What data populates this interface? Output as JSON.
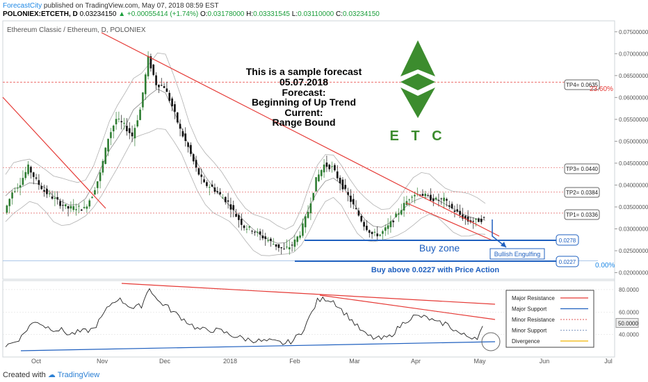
{
  "header": {
    "brand": "ForecastCity",
    "published": "published on TradingView.com, May 07, 2018 08:59 EST",
    "symbol": "POLONIEX:ETCETH, D",
    "last": "0.03234150",
    "change": "▲ +0.00055414 (+1.74%)",
    "o_label": "O:",
    "o_val": "0.03178000",
    "h_label": "H:",
    "h_val": "0.03331545",
    "l_label": "L:",
    "l_val": "0.03110000",
    "c_label": "C:",
    "c_val": "0.03234150"
  },
  "chart_title": "Ethereum Classic / Ethereum, D, POLONIEX",
  "forecast_text": [
    "This is a sample forecast",
    "05.07.2018",
    "Forecast:",
    "Beginning of Up Trend",
    "Current:",
    "Range Bound"
  ],
  "logo_letters": "E T C",
  "annotations": {
    "tp4": "TP4= 0.0635",
    "tp3": "TP3= 0.0440",
    "tp2": "TP2= 0.0384",
    "tp1": "TP1= 0.0336",
    "buy_top": "0.0278",
    "buy_bottom": "0.0227",
    "fib_top": "23.60%",
    "fib_bottom": "0.00%",
    "buy_zone": "Buy zone",
    "bullish": "Bullish Engulfing",
    "buy_above": "Buy above 0.0227 with Price Action"
  },
  "price_axis_labels": [
    "0.07500000",
    "0.07000000",
    "0.06500000",
    "0.06000000",
    "0.05500000",
    "0.05000000",
    "0.04500000",
    "0.04000000",
    "0.03500000",
    "0.03000000",
    "0.02500000",
    "0.02000000"
  ],
  "time_axis_labels": [
    "Oct",
    "Nov",
    "Dec",
    "2018",
    "Feb",
    "Mar",
    "Apr",
    "May",
    "Jun",
    "Jul"
  ],
  "osc_axis_labels": [
    "80.0000",
    "60.0000",
    "40.0000"
  ],
  "osc_current": "50.0000",
  "legend": {
    "items": [
      {
        "label": "Major Resistance",
        "color": "#e53935",
        "style": "solid"
      },
      {
        "label": "Major Support",
        "color": "#1e5fbf",
        "style": "solid"
      },
      {
        "label": "Minor Resistance",
        "color": "#e57373",
        "style": "dotted"
      },
      {
        "label": "Minor Support",
        "color": "#90a4c8",
        "style": "dotted"
      },
      {
        "label": "Divergence",
        "color": "#f0b400",
        "style": "solid"
      }
    ]
  },
  "footer": {
    "created": "Created with",
    "tv": "TradingView"
  },
  "colors": {
    "up": "#2e7d32",
    "down": "#111111",
    "resist": "#e53935",
    "support": "#1e5fbf",
    "logo": "#3c8c2e"
  },
  "chart_data": {
    "type": "line",
    "series": [
      {
        "values": [
          0.0337,
          0.0384,
          0.0405,
          0.0441,
          0.041,
          0.0386,
          0.0372,
          0.0358,
          0.0347,
          0.0349,
          0.0346,
          0.0377,
          0.0426,
          0.0508,
          0.0551,
          0.0536,
          0.0512,
          0.0572,
          0.069,
          0.0631,
          0.0625,
          0.058,
          0.0526,
          0.0486,
          0.0437,
          0.0402,
          0.0395,
          0.0377,
          0.036,
          0.033,
          0.0305,
          0.0298,
          0.0285,
          0.0274,
          0.0262,
          0.0252,
          0.0263,
          0.029,
          0.034,
          0.0412,
          0.0446,
          0.044,
          0.0407,
          0.0375,
          0.0342,
          0.0309,
          0.0288,
          0.0287,
          0.0305,
          0.0329,
          0.0355,
          0.0379,
          0.0381,
          0.0372,
          0.0366,
          0.0366,
          0.0346,
          0.0332,
          0.0318,
          0.0318,
          0.0323
        ]
      }
    ],
    "ylim": [
      0.0185,
      0.0775
    ],
    "osc_values": [
      30,
      33,
      38,
      48,
      52,
      47,
      45,
      44,
      40,
      42,
      43,
      45,
      55,
      66,
      72,
      68,
      63,
      66,
      82,
      70,
      66,
      60,
      55,
      50,
      45,
      44,
      44,
      43,
      40,
      38,
      36,
      35,
      34,
      34,
      33,
      32,
      35,
      42,
      55,
      70,
      72,
      70,
      62,
      55,
      47,
      40,
      37,
      36,
      38,
      45,
      52,
      56,
      56,
      54,
      50,
      50,
      45,
      40,
      38,
      38,
      50
    ],
    "osc_ylim": [
      20,
      88
    ]
  }
}
